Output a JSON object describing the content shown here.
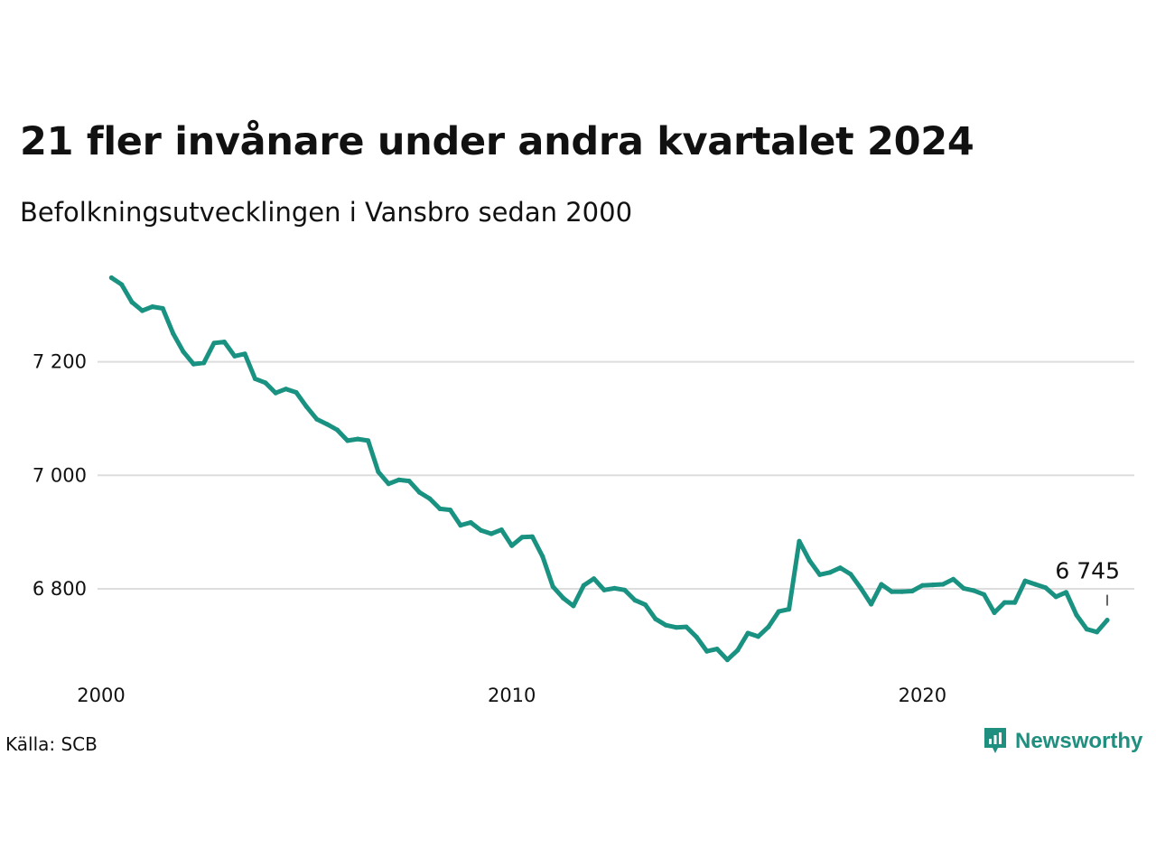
{
  "title": "21 fler invånare under andra kvartalet 2024",
  "subtitle": "Befolkningsutvecklingen i Vansbro sedan 2000",
  "source": "Källa: SCB",
  "brand": {
    "name": "Newsworthy",
    "icon": "newsworthy-logo-icon",
    "color": "#1f8f7f"
  },
  "colors": {
    "line": "#1a9282",
    "grid": "#dddddd"
  },
  "chart_data": {
    "type": "line",
    "title": "21 fler invånare under andra kvartalet 2024",
    "subtitle": "Befolkningsutvecklingen i Vansbro sedan 2000",
    "xlabel": "",
    "ylabel": "",
    "x_ticks": [
      {
        "value": 2000,
        "label": "2000"
      },
      {
        "value": 2010,
        "label": "2010"
      },
      {
        "value": 2020,
        "label": "2020"
      }
    ],
    "y_ticks": [
      {
        "value": 6800,
        "label": "6 800"
      },
      {
        "value": 7000,
        "label": "7 000"
      },
      {
        "value": 7200,
        "label": "7 200"
      }
    ],
    "xlim": [
      2000,
      2024.5
    ],
    "ylim": [
      6660,
      7360
    ],
    "grid": "horizontal",
    "end_label": "6 745",
    "series": [
      {
        "x": [
          2000.25,
          2000.5,
          2000.75,
          2001.0,
          2001.25,
          2001.5,
          2001.75,
          2002.0,
          2002.25,
          2002.5,
          2002.75,
          2003.0,
          2003.25,
          2003.5,
          2003.75,
          2004.0,
          2004.25,
          2004.5,
          2004.75,
          2005.0,
          2005.25,
          2005.5,
          2005.75,
          2006.0,
          2006.25,
          2006.5,
          2006.75,
          2007.0,
          2007.25,
          2007.5,
          2007.75,
          2008.0,
          2008.25,
          2008.5,
          2008.75,
          2009.0,
          2009.25,
          2009.5,
          2009.75,
          2010.0,
          2010.25,
          2010.5,
          2010.75,
          2011.0,
          2011.25,
          2011.5,
          2011.75,
          2012.0,
          2012.25,
          2012.5,
          2012.75,
          2013.0,
          2013.25,
          2013.5,
          2013.75,
          2014.0,
          2014.25,
          2014.5,
          2014.75,
          2015.0,
          2015.25,
          2015.5,
          2015.75,
          2016.0,
          2016.25,
          2016.5,
          2016.75,
          2017.0,
          2017.25,
          2017.5,
          2017.75,
          2018.0,
          2018.25,
          2018.5,
          2018.75,
          2019.0,
          2019.25,
          2019.5,
          2019.75,
          2020.0,
          2020.25,
          2020.5,
          2020.75,
          2021.0,
          2021.25,
          2021.5,
          2021.75,
          2022.0,
          2022.25,
          2022.5,
          2022.75,
          2023.0,
          2023.25,
          2023.5,
          2023.75,
          2024.0,
          2024.25,
          2024.5
        ],
        "y": [
          7348,
          7336,
          7305,
          7290,
          7297,
          7294,
          7250,
          7218,
          7196,
          7198,
          7233,
          7235,
          7210,
          7214,
          7170,
          7163,
          7145,
          7152,
          7146,
          7121,
          7099,
          7090,
          7080,
          7061,
          7064,
          7061,
          7006,
          6985,
          6992,
          6990,
          6970,
          6959,
          6941,
          6939,
          6912,
          6917,
          6903,
          6897,
          6904,
          6876,
          6891,
          6892,
          6857,
          6804,
          6784,
          6770,
          6806,
          6818,
          6798,
          6801,
          6798,
          6780,
          6772,
          6747,
          6736,
          6732,
          6733,
          6715,
          6690,
          6694,
          6675,
          6692,
          6722,
          6716,
          6733,
          6760,
          6764,
          6884,
          6850,
          6825,
          6829,
          6837,
          6826,
          6801,
          6773,
          6808,
          6795,
          6795,
          6796,
          6806,
          6807,
          6808,
          6817,
          6801,
          6797,
          6790,
          6758,
          6776,
          6776,
          6814,
          6808,
          6802,
          6786,
          6794,
          6754,
          6729,
          6724,
          6745
        ]
      }
    ]
  }
}
